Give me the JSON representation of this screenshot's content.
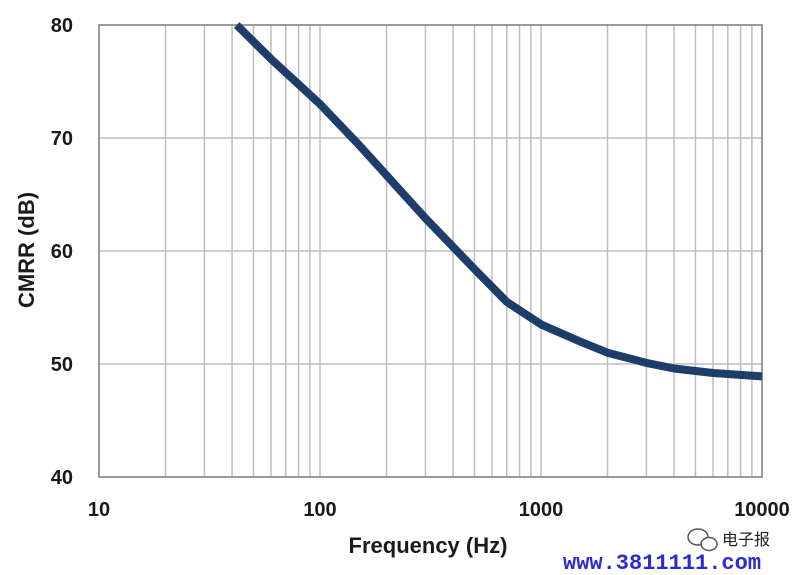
{
  "chart_data": {
    "type": "line",
    "title": "",
    "xlabel": "Frequency (Hz)",
    "ylabel": "CMRR (dB)",
    "xscale": "log",
    "xlim": [
      10,
      10000
    ],
    "ylim": [
      40,
      80
    ],
    "xticks": [
      10,
      100,
      1000,
      10000
    ],
    "xtick_labels": [
      "10",
      "100",
      "1000",
      "10000"
    ],
    "yticks": [
      40,
      50,
      60,
      70,
      80
    ],
    "ytick_labels": [
      "40",
      "50",
      "60",
      "70",
      "80"
    ],
    "grid": true,
    "series": [
      {
        "color": "#1f3d6b",
        "x": [
          42,
          60,
          100,
          150,
          200,
          300,
          500,
          700,
          1000,
          1500,
          2000,
          3000,
          4000,
          6000,
          10000
        ],
        "y": [
          80,
          77.0,
          73.0,
          69.4,
          66.7,
          62.9,
          58.4,
          55.5,
          53.5,
          52.0,
          51.0,
          50.1,
          49.6,
          49.2,
          48.9
        ]
      }
    ]
  },
  "watermark": {
    "brand": "电子报",
    "site": "www.3811111.com"
  }
}
